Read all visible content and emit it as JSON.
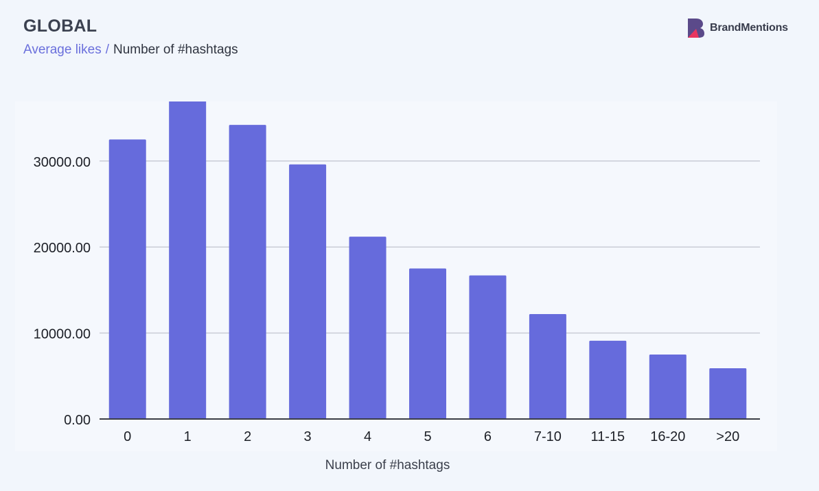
{
  "header": {
    "title": "GLOBAL",
    "subtitle_metric": "Average likes",
    "subtitle_separator": "/",
    "subtitle_dimension": "Number of #hashtags"
  },
  "brand": {
    "name": "BrandMentions",
    "icon": "brandmentions-logo-icon",
    "colors": {
      "dark": "#5b4a8a",
      "accent": "#e8355f"
    }
  },
  "chart_data": {
    "type": "bar",
    "title": "",
    "xlabel": "Number of #hashtags",
    "ylabel": "",
    "categories": [
      "0",
      "1",
      "2",
      "3",
      "4",
      "5",
      "6",
      "7-10",
      "11-15",
      "16-20",
      ">20"
    ],
    "values": [
      32500,
      37000,
      34200,
      29600,
      21200,
      17500,
      16700,
      12200,
      9100,
      7500,
      5900
    ],
    "ylim": [
      0,
      37000
    ],
    "yticks": [
      0,
      10000,
      20000,
      30000
    ],
    "ytick_labels": [
      "0.00",
      "10000.00",
      "20000.00",
      "30000.00"
    ],
    "grid": true,
    "bar_color": "#666bdc",
    "grid_color": "#c9ccd6"
  }
}
